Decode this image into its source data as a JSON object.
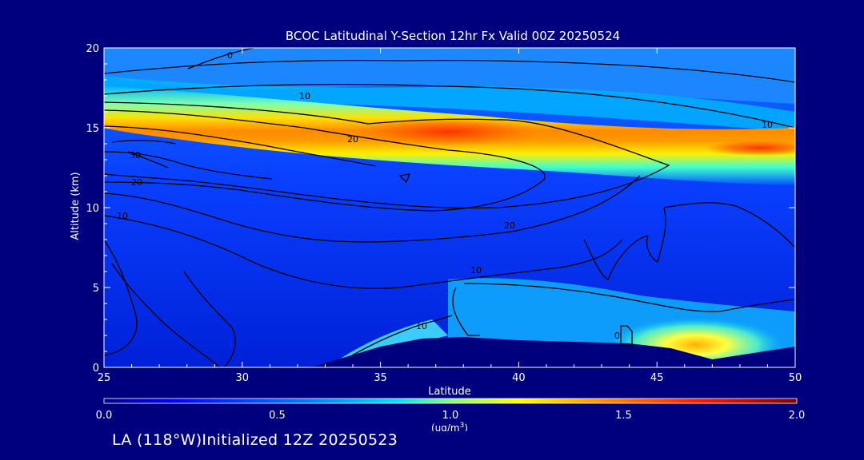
{
  "chart_data": {
    "type": "heatmap",
    "title": "BCOC Latitudinal Y-Section 12hr  Fx Valid 00Z 20250524",
    "xlabel": "Latitude",
    "ylabel": "Altitude (km)",
    "xlim": [
      25,
      50
    ],
    "ylim": [
      0,
      20
    ],
    "x_ticks": [
      "25",
      "30",
      "35",
      "40",
      "45",
      "50"
    ],
    "y_ticks": [
      "0",
      "5",
      "10",
      "15",
      "20"
    ],
    "colorbar": {
      "min": 0.0,
      "max": 2.0,
      "ticks": [
        "0.0",
        "0.5",
        "1.0",
        "1.5",
        "2.0"
      ],
      "unit_main": "(ug/m",
      "unit_sup": "3",
      "unit_close": ")"
    },
    "contour_labels": [
      "0",
      "10",
      "10",
      "20",
      "30",
      "20",
      "10",
      "20",
      "10",
      "10",
      "0"
    ],
    "highlights": [
      {
        "lat": 38.5,
        "alt": 14.8,
        "value": 1.7
      },
      {
        "lat": 49.5,
        "alt": 13.8,
        "value": 1.8
      },
      {
        "lat": 46.5,
        "alt": 1.0,
        "value": 1.5
      }
    ],
    "terrain": [
      [
        32.5,
        0
      ],
      [
        35,
        1.3
      ],
      [
        36.5,
        1.8
      ],
      [
        38,
        1.9
      ],
      [
        40,
        1.7
      ],
      [
        42,
        1.6
      ],
      [
        44,
        1.5
      ],
      [
        45.5,
        1.2
      ],
      [
        47,
        0.5
      ],
      [
        48.5,
        0.9
      ],
      [
        50,
        1.3
      ]
    ]
  },
  "footer": "LA (118°W)Initialized 12Z 20250523"
}
